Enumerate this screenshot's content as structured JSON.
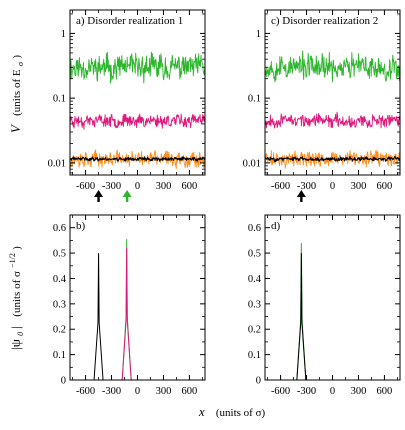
{
  "chart_data": [
    {
      "id": "a",
      "type": "line",
      "panel_label": "a)  Disorder realization 1",
      "yscale": "log",
      "ylim": [
        0.0065,
        2.3
      ],
      "xlim": [
        -780,
        780
      ],
      "yticks": [
        0.01,
        0.1,
        1
      ],
      "ytick_labels": [
        "0.01",
        "0.1",
        "1"
      ],
      "xticks": [
        -600,
        -300,
        0,
        300,
        600
      ],
      "xtick_labels": [
        "-600",
        "-300",
        "0",
        "300",
        "600"
      ],
      "grid": false,
      "arrows": [
        {
          "x": -450,
          "color": "#000000"
        },
        {
          "x": -120,
          "color": "#2db52d"
        }
      ],
      "series": [
        {
          "color": "#2db52d",
          "center": 0.3,
          "spread": 0.23,
          "seed": 11
        },
        {
          "color": "#e0197e",
          "center": 0.045,
          "spread": 0.12,
          "seed": 23
        },
        {
          "color": "#ff8c1a",
          "center": 0.0115,
          "spread": 0.14,
          "seed": 37
        },
        {
          "color": "#000000",
          "center": 0.0115,
          "spread": 0.035,
          "seed": 41
        }
      ]
    },
    {
      "id": "c",
      "type": "line",
      "panel_label": "c)  Disorder realization 2",
      "yscale": "log",
      "ylim": [
        0.0065,
        2.3
      ],
      "xlim": [
        -780,
        780
      ],
      "yticks": [
        0.01,
        0.1,
        1
      ],
      "ytick_labels": [
        "0.01",
        "0.1",
        "1"
      ],
      "xticks": [
        -600,
        -300,
        0,
        300,
        600
      ],
      "xtick_labels": [
        "-600",
        "-300",
        "0",
        "300",
        "600"
      ],
      "grid": false,
      "arrows": [
        {
          "x": -360,
          "color": "#000000"
        }
      ],
      "series": [
        {
          "color": "#2db52d",
          "center": 0.3,
          "spread": 0.23,
          "seed": 53
        },
        {
          "color": "#e0197e",
          "center": 0.045,
          "spread": 0.12,
          "seed": 67
        },
        {
          "color": "#ff8c1a",
          "center": 0.0115,
          "spread": 0.14,
          "seed": 71
        },
        {
          "color": "#000000",
          "center": 0.0115,
          "spread": 0.035,
          "seed": 83
        }
      ]
    },
    {
      "id": "b",
      "type": "line",
      "panel_label": "b)",
      "ylim": [
        0,
        0.65
      ],
      "xlim": [
        -780,
        780
      ],
      "yticks": [
        0,
        0.1,
        0.2,
        0.3,
        0.4,
        0.5,
        0.6
      ],
      "ytick_labels": [
        "0",
        "0.1",
        "0.2",
        "0.3",
        "0.4",
        "0.5",
        "0.6"
      ],
      "xticks": [
        -600,
        -300,
        0,
        300,
        600
      ],
      "xtick_labels": [
        "-600",
        "-300",
        "0",
        "300",
        "600"
      ],
      "grid": false,
      "peaks": [
        {
          "x": -450,
          "height": 0.5,
          "color": "#000000"
        },
        {
          "x": -125,
          "height": 0.555,
          "color": "#2db52d"
        },
        {
          "x": -125,
          "height": 0.52,
          "color": "#e0197e"
        }
      ]
    },
    {
      "id": "d",
      "type": "line",
      "panel_label": "d)",
      "ylim": [
        0,
        0.65
      ],
      "xlim": [
        -780,
        780
      ],
      "yticks": [
        0,
        0.1,
        0.2,
        0.3,
        0.4,
        0.5,
        0.6
      ],
      "ytick_labels": [
        "0",
        "0.1",
        "0.2",
        "0.3",
        "0.4",
        "0.5",
        "0.6"
      ],
      "xticks": [
        -600,
        -300,
        0,
        300,
        600
      ],
      "xtick_labels": [
        "-600",
        "-300",
        "0",
        "300",
        "600"
      ],
      "grid": false,
      "peaks": [
        {
          "x": -360,
          "height": 0.54,
          "color": "#2db52d"
        },
        {
          "x": -360,
          "height": 0.5,
          "color": "#000000"
        }
      ]
    }
  ],
  "labels": {
    "y_top_main": "V",
    "y_top_units": "(units of E",
    "y_top_sub": "σ",
    "y_top_close": ")",
    "y_bottom_main": "|ψ",
    "y_bottom_sub": "0",
    "y_bottom_bar": "|",
    "y_bottom_units": "(units of σ",
    "y_bottom_exp": "−1/2",
    "y_bottom_close": ")",
    "x_main": "x",
    "x_units": "(units of σ)"
  }
}
